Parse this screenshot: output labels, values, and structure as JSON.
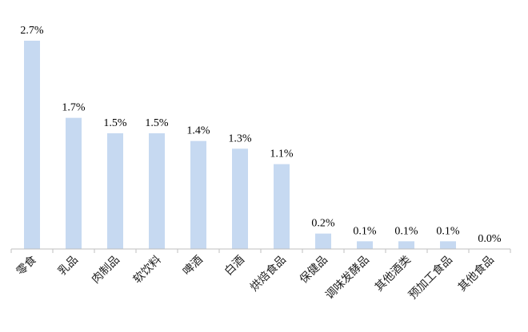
{
  "chart_data": {
    "type": "bar",
    "categories": [
      "零食",
      "乳品",
      "肉制品",
      "软饮料",
      "啤酒",
      "白酒",
      "烘焙食品",
      "保健品",
      "调味发酵品",
      "其他酒类",
      "预加工食品",
      "其他食品"
    ],
    "values": [
      2.7,
      1.7,
      1.5,
      1.5,
      1.4,
      1.3,
      1.1,
      0.2,
      0.1,
      0.1,
      0.1,
      0.0
    ],
    "data_labels": [
      "2.7%",
      "1.7%",
      "1.5%",
      "1.5%",
      "1.4%",
      "1.3%",
      "1.1%",
      "0.2%",
      "0.1%",
      "0.1%",
      "0.1%",
      "0.0%"
    ],
    "title": "",
    "xlabel": "",
    "ylabel": "",
    "ylim": [
      0,
      2.7
    ],
    "grid": false,
    "legend": "none",
    "bar_color": "#c6d9f1",
    "axis_color": "#bfbfbf"
  }
}
